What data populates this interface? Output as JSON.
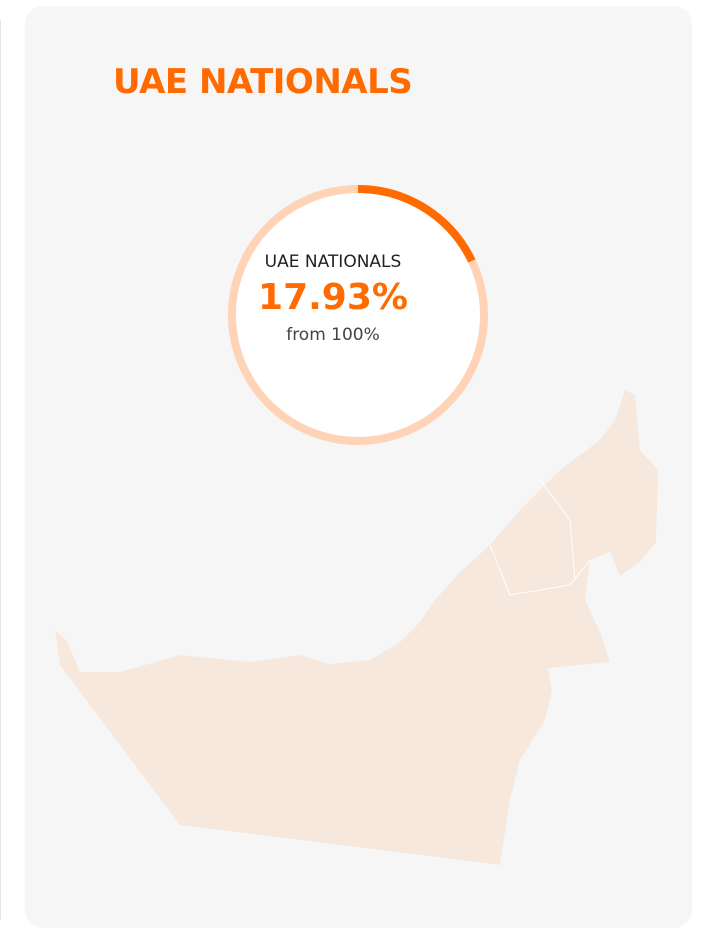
{
  "card": {
    "title": "UAE NATIONALS",
    "gauge": {
      "label": "UAE NATIONALS",
      "value": 17.93,
      "value_label": "17.93%",
      "caption": "from 100%",
      "max": 100
    }
  }
}
